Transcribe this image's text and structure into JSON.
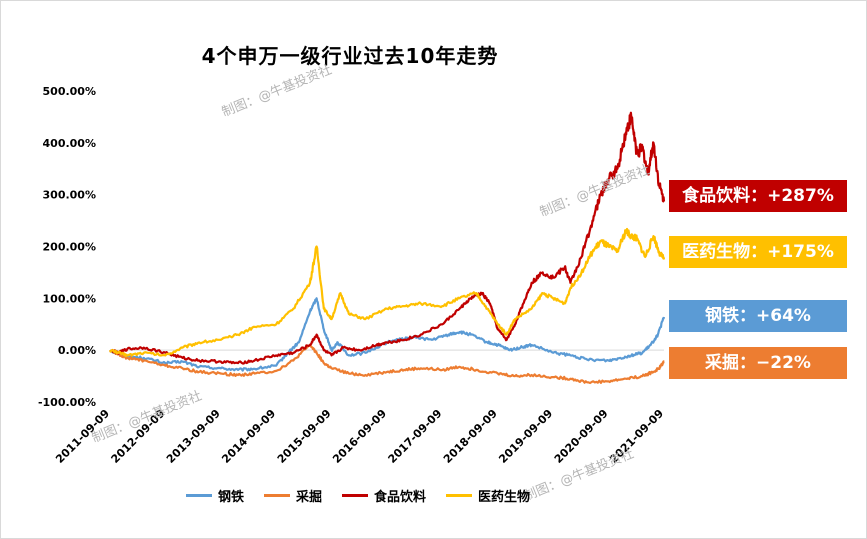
{
  "chart_data": {
    "type": "line",
    "title": "4个申万一级行业过去10年走势",
    "yticks": [
      "500.00%",
      "400.00%",
      "300.00%",
      "200.00%",
      "100.00%",
      "0.00%",
      "-100.00%"
    ],
    "ylim": [
      -100,
      500
    ],
    "xticks": [
      "2011-09-09",
      "2012-09-09",
      "2013-09-09",
      "2014-09-09",
      "2015-09-09",
      "2016-09-09",
      "2017-09-09",
      "2018-09-09",
      "2019-09-09",
      "2020-09-09",
      "2021-09-09"
    ],
    "x_start": 2011.69,
    "x_end": 2021.69,
    "grid": false,
    "legend_position": "bottom",
    "series": [
      {
        "name": "钢铁",
        "color": "#5b9bd5",
        "points": [
          [
            2011.69,
            0
          ],
          [
            2011.85,
            -8
          ],
          [
            2012.0,
            -12
          ],
          [
            2012.3,
            -15
          ],
          [
            2012.69,
            -25
          ],
          [
            2013.0,
            -22
          ],
          [
            2013.3,
            -32
          ],
          [
            2013.69,
            -35
          ],
          [
            2014.0,
            -38
          ],
          [
            2014.3,
            -36
          ],
          [
            2014.69,
            -30
          ],
          [
            2014.9,
            -5
          ],
          [
            2015.1,
            15
          ],
          [
            2015.3,
            75
          ],
          [
            2015.42,
            100
          ],
          [
            2015.55,
            40
          ],
          [
            2015.69,
            0
          ],
          [
            2015.8,
            15
          ],
          [
            2016.0,
            -10
          ],
          [
            2016.3,
            -5
          ],
          [
            2016.69,
            15
          ],
          [
            2016.9,
            20
          ],
          [
            2017.2,
            25
          ],
          [
            2017.5,
            20
          ],
          [
            2017.8,
            30
          ],
          [
            2018.0,
            35
          ],
          [
            2018.2,
            30
          ],
          [
            2018.5,
            15
          ],
          [
            2018.69,
            10
          ],
          [
            2018.9,
            0
          ],
          [
            2019.1,
            5
          ],
          [
            2019.3,
            10
          ],
          [
            2019.69,
            -5
          ],
          [
            2020.0,
            -10
          ],
          [
            2020.3,
            -18
          ],
          [
            2020.69,
            -20
          ],
          [
            2020.9,
            -15
          ],
          [
            2021.1,
            -10
          ],
          [
            2021.3,
            -5
          ],
          [
            2021.45,
            10
          ],
          [
            2021.58,
            30
          ],
          [
            2021.69,
            64
          ]
        ]
      },
      {
        "name": "采掘",
        "color": "#ed7d31",
        "points": [
          [
            2011.69,
            0
          ],
          [
            2011.85,
            -8
          ],
          [
            2012.0,
            -15
          ],
          [
            2012.3,
            -20
          ],
          [
            2012.69,
            -30
          ],
          [
            2013.0,
            -35
          ],
          [
            2013.3,
            -42
          ],
          [
            2013.69,
            -45
          ],
          [
            2014.0,
            -48
          ],
          [
            2014.3,
            -45
          ],
          [
            2014.69,
            -40
          ],
          [
            2015.0,
            -20
          ],
          [
            2015.3,
            10
          ],
          [
            2015.42,
            -5
          ],
          [
            2015.55,
            -25
          ],
          [
            2015.69,
            -35
          ],
          [
            2016.0,
            -45
          ],
          [
            2016.3,
            -48
          ],
          [
            2016.69,
            -42
          ],
          [
            2017.0,
            -38
          ],
          [
            2017.3,
            -35
          ],
          [
            2017.69,
            -38
          ],
          [
            2018.0,
            -32
          ],
          [
            2018.3,
            -38
          ],
          [
            2018.69,
            -45
          ],
          [
            2019.0,
            -50
          ],
          [
            2019.3,
            -48
          ],
          [
            2019.69,
            -52
          ],
          [
            2020.0,
            -55
          ],
          [
            2020.3,
            -62
          ],
          [
            2020.69,
            -60
          ],
          [
            2021.0,
            -55
          ],
          [
            2021.3,
            -50
          ],
          [
            2021.5,
            -42
          ],
          [
            2021.6,
            -35
          ],
          [
            2021.69,
            -22
          ]
        ]
      },
      {
        "name": "食品饮料",
        "color": "#c00000",
        "points": [
          [
            2011.69,
            0
          ],
          [
            2011.85,
            -5
          ],
          [
            2012.0,
            2
          ],
          [
            2012.3,
            5
          ],
          [
            2012.69,
            -5
          ],
          [
            2013.0,
            -15
          ],
          [
            2013.3,
            -20
          ],
          [
            2013.69,
            -22
          ],
          [
            2014.0,
            -25
          ],
          [
            2014.3,
            -20
          ],
          [
            2014.69,
            -10
          ],
          [
            2015.0,
            -5
          ],
          [
            2015.3,
            10
          ],
          [
            2015.42,
            30
          ],
          [
            2015.55,
            0
          ],
          [
            2015.69,
            -10
          ],
          [
            2015.9,
            5
          ],
          [
            2016.2,
            0
          ],
          [
            2016.5,
            10
          ],
          [
            2016.69,
            15
          ],
          [
            2017.0,
            20
          ],
          [
            2017.3,
            30
          ],
          [
            2017.69,
            50
          ],
          [
            2018.0,
            80
          ],
          [
            2018.2,
            100
          ],
          [
            2018.4,
            110
          ],
          [
            2018.55,
            90
          ],
          [
            2018.69,
            40
          ],
          [
            2018.85,
            20
          ],
          [
            2019.0,
            50
          ],
          [
            2019.15,
            90
          ],
          [
            2019.3,
            130
          ],
          [
            2019.5,
            150
          ],
          [
            2019.69,
            140
          ],
          [
            2019.9,
            160
          ],
          [
            2020.0,
            130
          ],
          [
            2020.2,
            180
          ],
          [
            2020.4,
            250
          ],
          [
            2020.55,
            300
          ],
          [
            2020.69,
            330
          ],
          [
            2020.85,
            350
          ],
          [
            2021.0,
            420
          ],
          [
            2021.1,
            450
          ],
          [
            2021.2,
            380
          ],
          [
            2021.3,
            390
          ],
          [
            2021.4,
            340
          ],
          [
            2021.5,
            400
          ],
          [
            2021.6,
            320
          ],
          [
            2021.69,
            287
          ]
        ]
      },
      {
        "name": "医药生物",
        "color": "#ffc000",
        "points": [
          [
            2011.69,
            0
          ],
          [
            2011.85,
            -5
          ],
          [
            2012.0,
            -10
          ],
          [
            2012.3,
            -5
          ],
          [
            2012.69,
            -10
          ],
          [
            2013.0,
            5
          ],
          [
            2013.3,
            15
          ],
          [
            2013.69,
            20
          ],
          [
            2014.0,
            30
          ],
          [
            2014.3,
            45
          ],
          [
            2014.69,
            50
          ],
          [
            2015.0,
            80
          ],
          [
            2015.3,
            130
          ],
          [
            2015.42,
            200
          ],
          [
            2015.55,
            80
          ],
          [
            2015.69,
            60
          ],
          [
            2015.85,
            110
          ],
          [
            2016.0,
            70
          ],
          [
            2016.3,
            60
          ],
          [
            2016.69,
            80
          ],
          [
            2017.0,
            85
          ],
          [
            2017.3,
            90
          ],
          [
            2017.69,
            85
          ],
          [
            2018.0,
            100
          ],
          [
            2018.3,
            110
          ],
          [
            2018.5,
            80
          ],
          [
            2018.69,
            50
          ],
          [
            2018.85,
            30
          ],
          [
            2019.0,
            60
          ],
          [
            2019.3,
            80
          ],
          [
            2019.5,
            110
          ],
          [
            2019.69,
            100
          ],
          [
            2019.9,
            90
          ],
          [
            2020.0,
            120
          ],
          [
            2020.2,
            150
          ],
          [
            2020.4,
            190
          ],
          [
            2020.55,
            210
          ],
          [
            2020.69,
            200
          ],
          [
            2020.85,
            190
          ],
          [
            2021.0,
            230
          ],
          [
            2021.1,
            220
          ],
          [
            2021.2,
            215
          ],
          [
            2021.35,
            180
          ],
          [
            2021.5,
            220
          ],
          [
            2021.6,
            190
          ],
          [
            2021.69,
            175
          ]
        ]
      }
    ],
    "end_labels": [
      {
        "text": "食品饮料：+287%",
        "color": "#c00000"
      },
      {
        "text": "医药生物：+175%",
        "color": "#ffc000"
      },
      {
        "text": "钢铁：+64%",
        "color": "#5b9bd5"
      },
      {
        "text": "采掘：−22%",
        "color": "#ed7d31"
      }
    ],
    "watermark_text": "制图：@牛基投资社"
  }
}
